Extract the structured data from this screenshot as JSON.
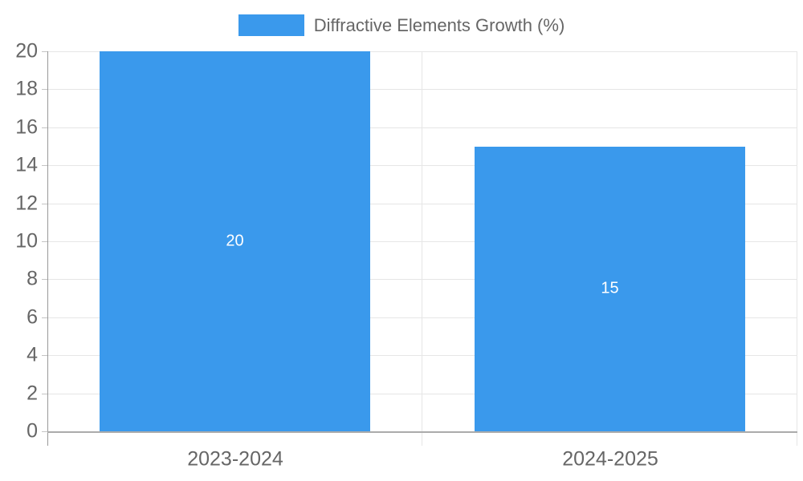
{
  "chart_data": {
    "type": "bar",
    "categories": [
      "2023-2024",
      "2024-2025"
    ],
    "series": [
      {
        "name": "Diffractive Elements Growth (%)",
        "values": [
          20,
          15
        ]
      }
    ],
    "data_labels": [
      "20",
      "15"
    ],
    "legend": {
      "label": "Diffractive Elements Growth (%)",
      "position": "top"
    },
    "xlabel": "",
    "ylabel": "",
    "ylim": [
      0,
      20
    ],
    "ytick_step": 2,
    "yticks": [
      0,
      2,
      4,
      6,
      8,
      10,
      12,
      14,
      16,
      18,
      20
    ],
    "grid": true,
    "colors": {
      "bar": "#3A99EC",
      "grid": "#E6E6E6",
      "axis": "#999999",
      "baseline": "#ABABAB",
      "tick": "#C4C4C4",
      "text": "#666666",
      "data_label": "#FFFFFF"
    }
  }
}
